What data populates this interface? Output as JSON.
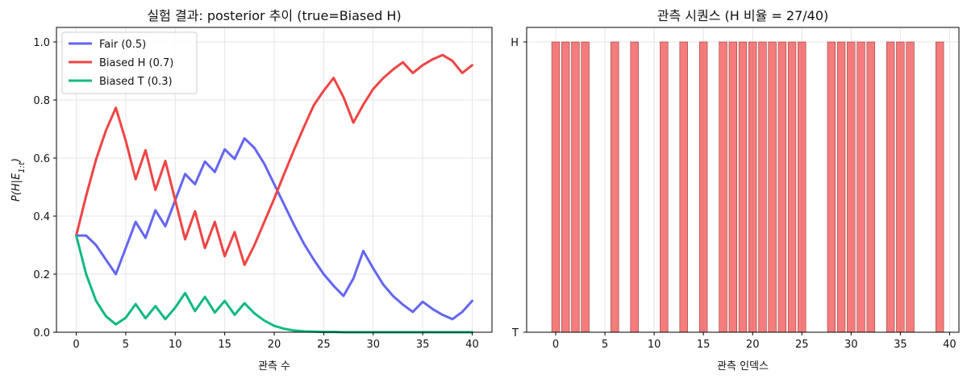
{
  "chart_data": [
    {
      "type": "line",
      "title": "실험 결과: posterior 추이 (true=Biased H)",
      "xlabel": "관측 수",
      "ylabel": "P(H|E_{1:t})",
      "xlim": [
        -2.0,
        42.0
      ],
      "ylim": [
        0.0,
        1.05
      ],
      "xticks": [
        0,
        5,
        10,
        15,
        20,
        25,
        30,
        35,
        40
      ],
      "yticks": [
        0.0,
        0.2,
        0.4,
        0.6,
        0.8,
        1.0
      ],
      "grid": true,
      "legend_position": "top-left",
      "x": [
        0,
        1,
        2,
        3,
        4,
        5,
        6,
        7,
        8,
        9,
        10,
        11,
        12,
        13,
        14,
        15,
        16,
        17,
        18,
        19,
        20,
        21,
        22,
        23,
        24,
        25,
        26,
        27,
        28,
        29,
        30,
        31,
        32,
        33,
        34,
        35,
        36,
        37,
        38,
        39,
        40
      ],
      "series": [
        {
          "name": "Fair (0.5)",
          "color": "#6366f1",
          "values": [
            0.333,
            0.333,
            0.3,
            0.25,
            0.2,
            0.29,
            0.38,
            0.325,
            0.42,
            0.365,
            0.455,
            0.545,
            0.51,
            0.588,
            0.552,
            0.63,
            0.597,
            0.668,
            0.635,
            0.58,
            0.51,
            0.44,
            0.37,
            0.305,
            0.25,
            0.2,
            0.16,
            0.125,
            0.185,
            0.28,
            0.22,
            0.165,
            0.125,
            0.095,
            0.07,
            0.105,
            0.08,
            0.06,
            0.045,
            0.07,
            0.108
          ]
        },
        {
          "name": "Biased H (0.7)",
          "color": "#ef4444",
          "values": [
            0.333,
            0.47,
            0.595,
            0.695,
            0.773,
            0.66,
            0.527,
            0.627,
            0.49,
            0.59,
            0.455,
            0.32,
            0.417,
            0.29,
            0.38,
            0.262,
            0.345,
            0.232,
            0.3,
            0.38,
            0.46,
            0.545,
            0.628,
            0.707,
            0.782,
            0.832,
            0.876,
            0.81,
            0.722,
            0.784,
            0.838,
            0.875,
            0.905,
            0.93,
            0.893,
            0.92,
            0.94,
            0.955,
            0.935,
            0.893,
            0.92
          ]
        },
        {
          "name": "Biased T (0.3)",
          "color": "#10b981",
          "values": [
            0.333,
            0.2,
            0.108,
            0.055,
            0.027,
            0.05,
            0.097,
            0.048,
            0.09,
            0.045,
            0.085,
            0.135,
            0.073,
            0.122,
            0.068,
            0.108,
            0.06,
            0.1,
            0.065,
            0.04,
            0.022,
            0.012,
            0.006,
            0.003,
            0.002,
            0.001,
            0.001,
            0.0,
            0.0,
            0.0,
            0.0,
            0.0,
            0.0,
            0.0,
            0.0,
            0.0,
            0.0,
            0.0,
            0.0,
            0.0,
            0.0
          ]
        }
      ]
    },
    {
      "type": "bar",
      "title": "관측 시퀀스 (H 비율 = 27/40)",
      "xlabel": "관측 인덱스",
      "ylabel": "",
      "xlim": [
        -2.95,
        40.95
      ],
      "ylim": [
        0,
        1
      ],
      "xticks": [
        0,
        5,
        10,
        15,
        20,
        25,
        30,
        35,
        40
      ],
      "ytick_labels": [
        "T",
        "H"
      ],
      "grid": true,
      "bar_color": "#ef4444",
      "categories": [
        0,
        1,
        2,
        3,
        4,
        5,
        6,
        7,
        8,
        9,
        10,
        11,
        12,
        13,
        14,
        15,
        16,
        17,
        18,
        19,
        20,
        21,
        22,
        23,
        24,
        25,
        26,
        27,
        28,
        29,
        30,
        31,
        32,
        33,
        34,
        35,
        36,
        37,
        38,
        39
      ],
      "values": [
        1,
        1,
        1,
        1,
        0,
        0,
        1,
        0,
        1,
        0,
        0,
        1,
        0,
        1,
        0,
        1,
        0,
        1,
        1,
        1,
        1,
        1,
        1,
        1,
        1,
        1,
        0,
        0,
        1,
        1,
        1,
        1,
        1,
        0,
        1,
        1,
        1,
        0,
        0,
        1
      ]
    }
  ]
}
